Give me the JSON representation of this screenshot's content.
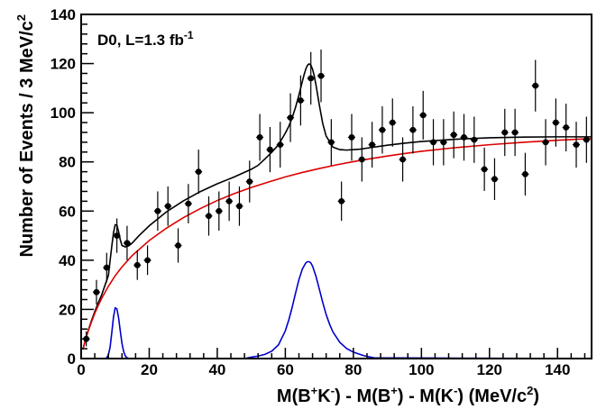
{
  "chart_data": {
    "type": "scatter",
    "annotation": {
      "text": "D0, L=1.3 fb",
      "superscript": "-1"
    },
    "xlabel": {
      "parts": [
        {
          "t": "M(B",
          "s": "n"
        },
        {
          "t": "+",
          "s": "sup"
        },
        {
          "t": "K",
          "s": "n"
        },
        {
          "t": "-",
          "s": "sup"
        },
        {
          "t": ") - M(B",
          "s": "n"
        },
        {
          "t": "+",
          "s": "sup"
        },
        {
          "t": ") - M(K",
          "s": "n"
        },
        {
          "t": "-",
          "s": "sup"
        },
        {
          "t": ")    (MeV/c",
          "s": "n"
        },
        {
          "t": "2",
          "s": "sup"
        },
        {
          "t": ")",
          "s": "n"
        }
      ]
    },
    "ylabel": {
      "parts": [
        {
          "t": "Number of Events / 3 MeV/c",
          "s": "n"
        },
        {
          "t": "2",
          "s": "sup"
        }
      ]
    },
    "xlim": [
      0,
      150
    ],
    "ylim": [
      0,
      140
    ],
    "xticks": [
      0,
      20,
      40,
      60,
      80,
      100,
      120,
      140
    ],
    "yticks": [
      0,
      20,
      40,
      60,
      80,
      100,
      120,
      140
    ],
    "grid": false,
    "series": [
      {
        "kind": "points",
        "color": "#000000",
        "x": [
          1.5,
          4.5,
          7.5,
          10.5,
          13.5,
          16.5,
          19.5,
          22.5,
          25.5,
          28.5,
          31.5,
          34.5,
          37.5,
          40.5,
          43.5,
          46.5,
          49.5,
          52.5,
          55.5,
          58.5,
          61.5,
          64.5,
          67.5,
          70.5,
          73.5,
          76.5,
          79.5,
          82.5,
          85.5,
          88.5,
          91.5,
          94.5,
          97.5,
          100.5,
          103.5,
          106.5,
          109.5,
          112.5,
          115.5,
          118.5,
          121.5,
          124.5,
          127.5,
          130.5,
          133.5,
          136.5,
          139.5,
          142.5,
          145.5,
          148.5
        ],
        "y": [
          8,
          27,
          37,
          50,
          47,
          38,
          40,
          60,
          62,
          46,
          63,
          76,
          58,
          60,
          64,
          62,
          72,
          90,
          85,
          87,
          98,
          105,
          114,
          115,
          88,
          64,
          90,
          81,
          87,
          93,
          96,
          81,
          93,
          99,
          88,
          88,
          91,
          90,
          89,
          77,
          73,
          92,
          92,
          75,
          111,
          88,
          96,
          94,
          87,
          89
        ],
        "err": [
          3,
          5,
          6,
          7,
          7,
          6,
          6,
          8,
          8,
          7,
          8,
          9,
          8,
          8,
          8,
          8,
          8.5,
          9.5,
          9.2,
          9.3,
          9.9,
          10.2,
          10.7,
          10.7,
          9.4,
          8,
          9.5,
          9,
          9.3,
          9.6,
          9.8,
          9,
          9.6,
          9.9,
          9.4,
          9.4,
          9.5,
          9.5,
          9.4,
          8.8,
          8.5,
          9.6,
          9.6,
          8.7,
          10.5,
          9.4,
          9.8,
          9.7,
          9.3,
          9.4
        ]
      },
      {
        "kind": "curve",
        "color": "#000000",
        "x": [
          0.5,
          1,
          2,
          3,
          4,
          5,
          6,
          7,
          8,
          8.5,
          9,
          9.5,
          10,
          10.5,
          11,
          11.5,
          12,
          13,
          14,
          15,
          17,
          20,
          25,
          30,
          35,
          40,
          45,
          50,
          52,
          54,
          56,
          58,
          60,
          61,
          62,
          63,
          64,
          65,
          65.5,
          66,
          66.5,
          67,
          67.5,
          68,
          68.5,
          69,
          70,
          71,
          72,
          74,
          76,
          78,
          80,
          82,
          85,
          90,
          95,
          100,
          110,
          120,
          130,
          140,
          150
        ],
        "y": [
          3.7,
          6.3,
          11.1,
          15.3,
          19.1,
          22.6,
          25.8,
          29.8,
          33.8,
          39.8,
          45.7,
          51.1,
          54.4,
          54.3,
          51.6,
          48.3,
          46.0,
          45.4,
          45.9,
          47.0,
          50.0,
          54.0,
          59.6,
          64.1,
          67.9,
          71.1,
          73.9,
          77.0,
          78.6,
          81.2,
          83.9,
          87.0,
          91.7,
          94.4,
          97.9,
          102.2,
          107.2,
          112.7,
          115.4,
          117.7,
          119.3,
          119.9,
          119.4,
          117.7,
          115.0,
          111.4,
          103.1,
          95.6,
          90.5,
          86.0,
          85.0,
          84.8,
          85.0,
          85.2,
          85.8,
          86.8,
          87.6,
          88.3,
          89.2,
          89.8,
          90.1,
          90.2,
          90.2
        ]
      },
      {
        "kind": "curve",
        "color": "#dd0000",
        "x": [
          0.5,
          1,
          2,
          3,
          4,
          5,
          6,
          8,
          10,
          12,
          15,
          20,
          25,
          30,
          35,
          40,
          45,
          50,
          55,
          60,
          65,
          70,
          75,
          80,
          85,
          90,
          95,
          100,
          110,
          120,
          130,
          140,
          150
        ],
        "y": [
          3.7,
          6.3,
          10.9,
          14.8,
          18.4,
          21.5,
          24.4,
          29.4,
          33.7,
          37.3,
          41.9,
          48.0,
          53.0,
          57.3,
          61.0,
          64.3,
          67.1,
          69.6,
          71.8,
          73.9,
          75.7,
          77.3,
          78.8,
          80.1,
          81.3,
          82.4,
          83.4,
          84.3,
          85.8,
          87.0,
          88.0,
          88.8,
          89.5
        ]
      },
      {
        "kind": "curve",
        "color": "#0000cc",
        "x": [
          0,
          7,
          7.5,
          8,
          8.5,
          9,
          9.5,
          10,
          10.5,
          11,
          11.5,
          12,
          12.5,
          13,
          13.5,
          14,
          15,
          48,
          50,
          52,
          54,
          56,
          58,
          60,
          61,
          62,
          63,
          64,
          65,
          66,
          66.5,
          67,
          67.5,
          68,
          69,
          70,
          71,
          72,
          73,
          74,
          76,
          78,
          80,
          83,
          86,
          150
        ],
        "y": [
          0,
          0,
          0.3,
          1.5,
          4.6,
          10.5,
          16.9,
          20.6,
          20.2,
          16.6,
          11.2,
          6.1,
          2.8,
          1.0,
          0.3,
          0.05,
          0,
          0,
          0.6,
          1.0,
          1.7,
          3.0,
          5.6,
          11.3,
          15.6,
          20.8,
          26.6,
          32.1,
          36.4,
          38.9,
          39.4,
          39.4,
          38.9,
          37.6,
          33.5,
          28.2,
          22.8,
          17.9,
          14.0,
          10.8,
          6.6,
          4.1,
          2.6,
          1.2,
          0.3,
          0
        ]
      }
    ]
  }
}
